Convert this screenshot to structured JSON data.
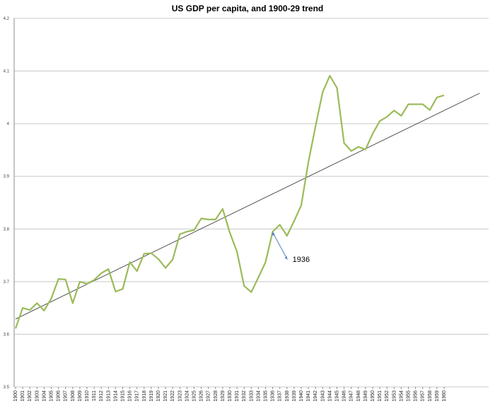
{
  "chart_data": {
    "type": "line",
    "title": "US GDP per capita, and 1900-29 trend",
    "ylim": [
      3.5,
      4.2
    ],
    "yticks": [
      "3.5",
      "3.6",
      "3.7",
      "3.8",
      "3.9",
      "4",
      "4.1",
      "4.2"
    ],
    "grid": true,
    "colors": {
      "series": "#9bbb59",
      "trend": "#404040",
      "annotation": "#4f81bd",
      "grid": "#c8c8c8"
    },
    "series": [
      {
        "x": [
          "1900",
          "1901",
          "1902",
          "1903",
          "1904",
          "1905",
          "1906",
          "1907",
          "1908",
          "1909",
          "1910",
          "1911",
          "1912",
          "1913",
          "1914",
          "1915",
          "1916",
          "1917",
          "1918",
          "1919",
          "1920",
          "1921",
          "1922",
          "1923",
          "1924",
          "1925",
          "1926",
          "1927",
          "1928",
          "1929",
          "1930",
          "1931",
          "1932",
          "1933",
          "1934",
          "1935",
          "1936",
          "1937",
          "1938",
          "1939",
          "1940",
          "1941",
          "1942",
          "1943",
          "1944",
          "1945",
          "1946",
          "1947",
          "1948",
          "1949",
          "1950",
          "1951",
          "1952",
          "1953",
          "1954",
          "1955",
          "1956",
          "1957",
          "1958",
          "1959",
          "1960"
        ],
        "values": [
          3.611,
          3.65,
          3.646,
          3.659,
          3.645,
          3.668,
          3.705,
          3.704,
          3.659,
          3.7,
          3.696,
          3.703,
          3.716,
          3.724,
          3.681,
          3.686,
          3.737,
          3.72,
          3.753,
          3.754,
          3.743,
          3.726,
          3.742,
          3.79,
          3.795,
          3.798,
          3.82,
          3.818,
          3.818,
          3.838,
          3.793,
          3.757,
          3.692,
          3.68,
          3.708,
          3.737,
          3.795,
          3.808,
          3.787,
          3.815,
          3.845,
          3.927,
          3.995,
          4.06,
          4.091,
          4.068,
          3.963,
          3.948,
          3.956,
          3.951,
          3.981,
          4.005,
          4.013,
          4.025,
          4.015,
          4.037,
          4.037,
          4.037,
          4.026,
          4.05,
          4.054
        ]
      },
      {
        "x": [
          "1900",
          "1965"
        ],
        "values": [
          3.629,
          4.058
        ]
      }
    ],
    "annotations": [
      {
        "text": "1936",
        "x": "1936",
        "y": 3.795
      }
    ]
  }
}
